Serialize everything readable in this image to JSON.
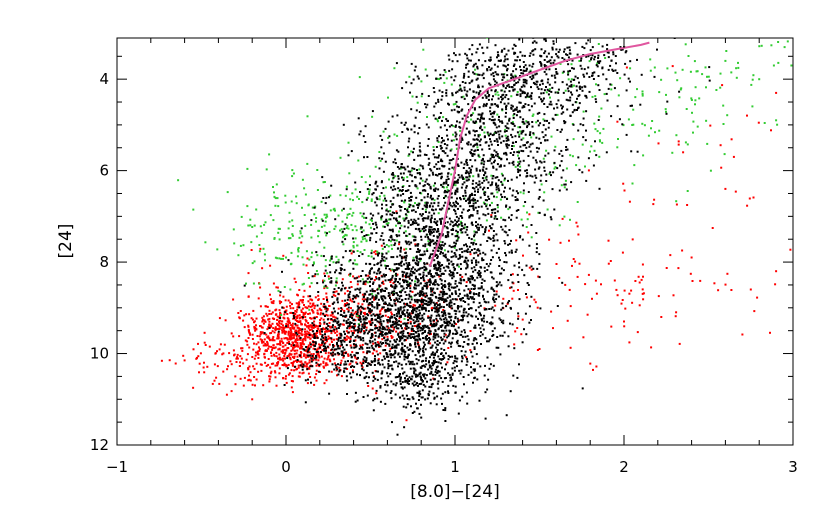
{
  "chart_data": {
    "type": "scatter",
    "title": "",
    "xlabel": "[8.0]−[24]",
    "ylabel": "[24]",
    "xlim": [
      -1,
      3
    ],
    "ylim": [
      12,
      3.1
    ],
    "y_inverted": true,
    "grid": false,
    "xticks": [
      -1,
      0,
      1,
      2,
      3
    ],
    "xtick_labels": [
      "−1",
      "0",
      "1",
      "2",
      "3"
    ],
    "yticks": [
      4,
      6,
      8,
      10,
      12
    ],
    "ytick_labels": [
      "4",
      "6",
      "8",
      "10",
      "12"
    ],
    "series": [
      {
        "color": "#ff0000",
        "marker": "point",
        "clusters": [
          {
            "cx": 0.05,
            "cy": 9.6,
            "sx": 0.13,
            "sy": 0.45,
            "n": 700
          },
          {
            "cx": 0.3,
            "cy": 9.4,
            "sx": 0.25,
            "sy": 0.6,
            "n": 350
          },
          {
            "cx": -0.2,
            "cy": 10.2,
            "sx": 0.2,
            "sy": 0.3,
            "n": 120
          },
          {
            "cx": 0.6,
            "cy": 9.0,
            "sx": 0.25,
            "sy": 0.6,
            "n": 120
          },
          {
            "cx": 1.7,
            "cy": 8.6,
            "sx": 0.6,
            "sy": 0.7,
            "n": 140
          },
          {
            "cx": 2.5,
            "cy": 6.2,
            "sx": 0.35,
            "sy": 1.4,
            "n": 30
          }
        ],
        "points": [
          [
            -0.6,
            10.15
          ],
          [
            -0.55,
            10.75
          ],
          [
            -0.35,
            10.9
          ],
          [
            -0.3,
            10.5
          ],
          [
            -0.25,
            10.7
          ],
          [
            -0.2,
            11.0
          ],
          [
            2.9,
            4.3
          ],
          [
            2.65,
            5.7
          ],
          [
            2.9,
            8.2
          ],
          [
            2.75,
            8.6
          ],
          [
            2.4,
            7.9
          ],
          [
            2.0,
            9.3
          ],
          [
            1.5,
            9.9
          ],
          [
            1.35,
            9.8
          ],
          [
            2.35,
            5.6
          ],
          [
            2.6,
            6.4
          ]
        ]
      },
      {
        "color": "#33cc33",
        "marker": "point",
        "clusters": [
          {
            "cx": 0.25,
            "cy": 7.5,
            "sx": 0.3,
            "sy": 0.7,
            "n": 220
          },
          {
            "cx": 0.5,
            "cy": 7.0,
            "sx": 0.35,
            "sy": 0.6,
            "n": 140
          },
          {
            "cx": 1.6,
            "cy": 4.7,
            "sx": 0.5,
            "sy": 0.9,
            "n": 180
          },
          {
            "cx": 2.5,
            "cy": 3.9,
            "sx": 0.35,
            "sy": 0.6,
            "n": 70
          },
          {
            "cx": 1.2,
            "cy": 6.2,
            "sx": 0.4,
            "sy": 0.8,
            "n": 80
          }
        ],
        "points": [
          [
            2.95,
            3.3
          ],
          [
            2.9,
            4.9
          ],
          [
            2.8,
            4.0
          ],
          [
            2.6,
            3.6
          ],
          [
            0.1,
            6.2
          ],
          [
            -0.05,
            6.6
          ],
          [
            0.0,
            7.9
          ]
        ]
      },
      {
        "color": "#000000",
        "marker": "point",
        "clusters": [
          {
            "cx": 0.85,
            "cy": 8.8,
            "sx": 0.25,
            "sy": 0.9,
            "n": 1500
          },
          {
            "cx": 0.55,
            "cy": 9.4,
            "sx": 0.22,
            "sy": 0.6,
            "n": 600
          },
          {
            "cx": 0.95,
            "cy": 6.8,
            "sx": 0.25,
            "sy": 0.9,
            "n": 900
          },
          {
            "cx": 1.25,
            "cy": 5.0,
            "sx": 0.28,
            "sy": 0.8,
            "n": 700
          },
          {
            "cx": 1.55,
            "cy": 3.8,
            "sx": 0.3,
            "sy": 0.45,
            "n": 400
          },
          {
            "cx": 0.8,
            "cy": 10.6,
            "sx": 0.12,
            "sy": 0.35,
            "n": 180
          },
          {
            "cx": 0.3,
            "cy": 9.8,
            "sx": 0.15,
            "sy": 0.4,
            "n": 150
          }
        ],
        "points": [
          [
            0.75,
            11.3
          ],
          [
            0.8,
            11.4
          ],
          [
            0.78,
            11.2
          ],
          [
            1.9,
            3.25
          ],
          [
            2.0,
            3.3
          ],
          [
            1.6,
            3.35
          ],
          [
            2.3,
            3.1
          ]
        ]
      }
    ],
    "curve": {
      "color": "#e0569f",
      "points": [
        [
          0.85,
          8.1
        ],
        [
          0.92,
          7.4
        ],
        [
          0.96,
          6.7
        ],
        [
          1.0,
          6.0
        ],
        [
          1.03,
          5.3
        ],
        [
          1.07,
          4.8
        ],
        [
          1.12,
          4.45
        ],
        [
          1.2,
          4.2
        ],
        [
          1.35,
          4.0
        ],
        [
          1.5,
          3.8
        ],
        [
          1.65,
          3.6
        ],
        [
          1.8,
          3.45
        ],
        [
          1.95,
          3.35
        ],
        [
          2.1,
          3.25
        ],
        [
          2.15,
          3.2
        ]
      ]
    }
  }
}
